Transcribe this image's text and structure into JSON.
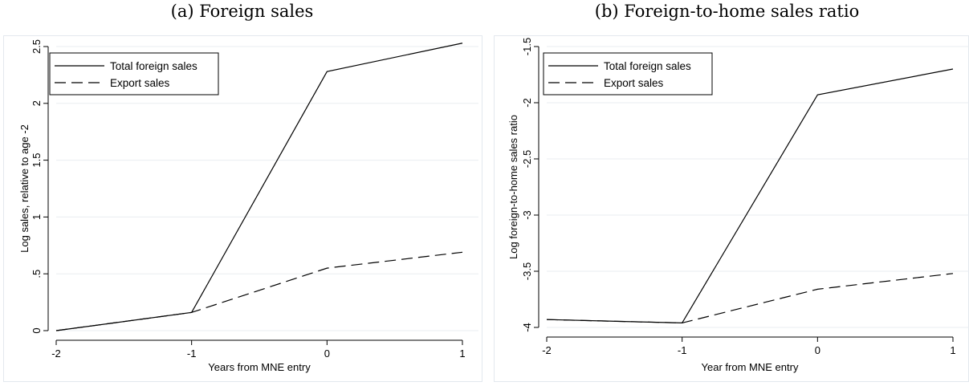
{
  "panels": [
    {
      "title": "(a) Foreign sales"
    },
    {
      "title": "(b) Foreign-to-home sales ratio"
    }
  ],
  "colors": {
    "line": "#000000",
    "grid": "#e9edf0",
    "frame": "#e3e8ee"
  },
  "chart_data": [
    {
      "type": "line",
      "title": "",
      "xlabel": "Years from MNE entry",
      "ylabel": "Log sales, relative to age -2",
      "x": [
        -2,
        -1,
        0,
        1
      ],
      "xticks": [
        "-2",
        "-1",
        "0",
        "1"
      ],
      "yticks": [
        0,
        0.5,
        1,
        1.5,
        2,
        2.5
      ],
      "ytick_labels": [
        "0",
        ".5",
        "1",
        "1.5",
        "2",
        "2.5"
      ],
      "xlim": [
        -2,
        1
      ],
      "ylim": [
        0,
        2.5
      ],
      "grid": true,
      "legend_position": "top-left",
      "series": [
        {
          "name": "Total foreign sales",
          "style": "solid",
          "values": [
            0,
            0.16,
            2.28,
            2.53
          ]
        },
        {
          "name": "Export sales",
          "style": "dashed",
          "values": [
            0,
            0.16,
            0.55,
            0.69
          ]
        }
      ]
    },
    {
      "type": "line",
      "title": "",
      "xlabel": "Year from MNE entry",
      "ylabel": "Log foreign-to-home sales ratio",
      "x": [
        -2,
        -1,
        0,
        1
      ],
      "xticks": [
        "-2",
        "-1",
        "0",
        "1"
      ],
      "yticks": [
        -4,
        -3.5,
        -3,
        -2.5,
        -2,
        -1.5
      ],
      "ytick_labels": [
        "-4",
        "-3.5",
        "-3",
        "-2.5",
        "-2",
        "-1.5"
      ],
      "xlim": [
        -2,
        1
      ],
      "ylim": [
        -4,
        -1.5
      ],
      "grid": true,
      "legend_position": "top-left",
      "series": [
        {
          "name": "Total foreign sales",
          "style": "solid",
          "values": [
            -3.93,
            -3.96,
            -1.93,
            -1.7
          ]
        },
        {
          "name": "Export sales",
          "style": "dashed",
          "values": [
            -3.93,
            -3.96,
            -3.66,
            -3.52
          ]
        }
      ]
    }
  ]
}
